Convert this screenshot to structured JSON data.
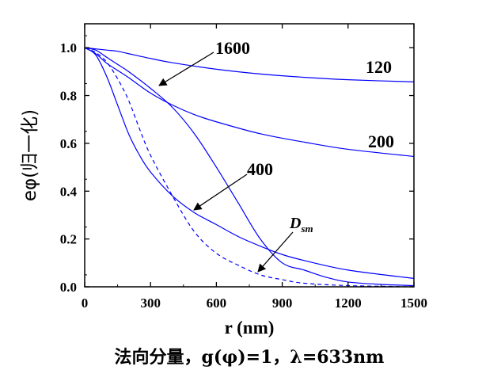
{
  "chart_data": {
    "type": "line",
    "title": "",
    "xlabel": "r (nm)",
    "ylabel": "eφ(归一化)",
    "caption": "法向分量，g(φ)=1，λ=633nm",
    "xlim": [
      0,
      1500
    ],
    "ylim": [
      0.0,
      1.1
    ],
    "xticks": [
      0,
      300,
      600,
      900,
      1200,
      1500
    ],
    "xtick_labels": [
      "0",
      "300",
      "600",
      "900",
      "1200",
      "1500"
    ],
    "yticks": [
      0.0,
      0.2,
      0.4,
      0.6,
      0.8,
      1.0
    ],
    "ytick_labels": [
      "0.0",
      "0.2",
      "0.4",
      "0.6",
      "0.8",
      "1.0"
    ],
    "line_color": "#0000ff",
    "series": [
      {
        "name": "120",
        "style": "solid",
        "x": [
          0,
          50,
          100,
          150,
          200,
          300,
          400,
          600,
          800,
          1000,
          1200,
          1500
        ],
        "y": [
          1.0,
          0.995,
          0.99,
          0.985,
          0.975,
          0.955,
          0.937,
          0.91,
          0.89,
          0.876,
          0.866,
          0.857
        ]
      },
      {
        "name": "200",
        "style": "solid",
        "x": [
          0,
          50,
          100,
          150,
          200,
          300,
          400,
          500,
          600,
          800,
          1000,
          1200,
          1500
        ],
        "y": [
          1.0,
          0.975,
          0.935,
          0.905,
          0.875,
          0.81,
          0.76,
          0.72,
          0.69,
          0.64,
          0.605,
          0.575,
          0.545
        ]
      },
      {
        "name": "400",
        "style": "solid",
        "x": [
          0,
          50,
          100,
          150,
          200,
          250,
          300,
          400,
          500,
          600,
          700,
          800,
          900,
          1000,
          1200,
          1500
        ],
        "y": [
          1.0,
          0.97,
          0.88,
          0.76,
          0.64,
          0.55,
          0.48,
          0.38,
          0.31,
          0.26,
          0.21,
          0.17,
          0.135,
          0.11,
          0.07,
          0.035
        ]
      },
      {
        "name": "1600",
        "style": "solid",
        "x": [
          0,
          50,
          100,
          150,
          200,
          300,
          400,
          500,
          600,
          700,
          800,
          900,
          1000,
          1100,
          1200,
          1350,
          1500
        ],
        "y": [
          1.0,
          0.99,
          0.96,
          0.93,
          0.9,
          0.83,
          0.75,
          0.64,
          0.5,
          0.35,
          0.2,
          0.1,
          0.07,
          0.04,
          0.02,
          0.01,
          0.005
        ]
      },
      {
        "name": "D_sm",
        "style": "dashed",
        "x": [
          0,
          50,
          100,
          150,
          200,
          250,
          300,
          400,
          500,
          600,
          700,
          800,
          900,
          1000,
          1200,
          1500
        ],
        "y": [
          1.0,
          0.98,
          0.94,
          0.87,
          0.78,
          0.66,
          0.55,
          0.38,
          0.23,
          0.14,
          0.09,
          0.05,
          0.03,
          0.015,
          0.005,
          0.0
        ]
      }
    ],
    "curve_labels": [
      {
        "text": "120"
      },
      {
        "text": "200"
      },
      {
        "text": "400"
      },
      {
        "text": "1600"
      },
      {
        "text": "D",
        "sub": "sm",
        "italic": true
      }
    ],
    "grid": false,
    "legend": "none"
  }
}
